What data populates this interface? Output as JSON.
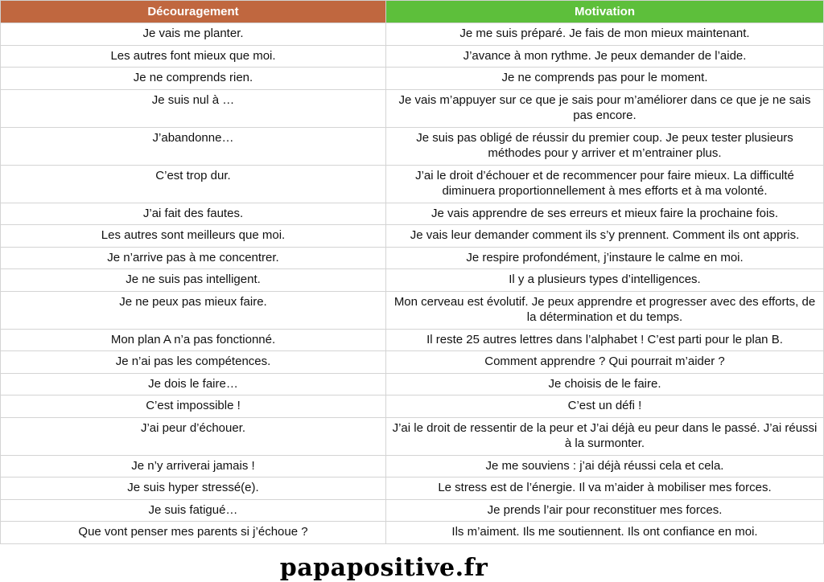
{
  "header": {
    "left": "Découragement",
    "right": "Motivation",
    "colors": {
      "left": "#c0673f",
      "right": "#5dbf3b"
    }
  },
  "rows": [
    {
      "d": "Je vais me planter.",
      "m": "Je me suis préparé. Je fais de mon mieux maintenant."
    },
    {
      "d": "Les autres font mieux que moi.",
      "m": "J’avance à mon rythme. Je peux demander de l’aide."
    },
    {
      "d": "Je ne comprends rien.",
      "m": "Je ne comprends pas pour le moment."
    },
    {
      "d": "Je suis nul à …",
      "m": "Je vais m’appuyer sur ce que je sais pour m’améliorer dans ce que je ne sais pas encore."
    },
    {
      "d": "J’abandonne…",
      "m": "Je suis pas obligé de réussir du premier coup. Je peux tester plusieurs méthodes pour y arriver et m’entrainer plus."
    },
    {
      "d": "C’est trop dur.",
      "m": "J’ai le droit d’échouer et de recommencer pour faire mieux. La difficulté diminuera proportionnellement à mes efforts et à ma volonté."
    },
    {
      "d": "J’ai fait des fautes.",
      "m": "Je vais apprendre de ses erreurs et mieux faire la prochaine fois."
    },
    {
      "d": "Les autres sont meilleurs que moi.",
      "m": "Je vais leur demander comment ils s’y prennent. Comment ils ont appris."
    },
    {
      "d": "Je n’arrive pas à me concentrer.",
      "m": "Je respire profondément, j’instaure le calme en moi."
    },
    {
      "d": "Je ne suis pas intelligent.",
      "m": "Il y a plusieurs types d’intelligences."
    },
    {
      "d": "Je ne peux pas mieux faire.",
      "m": "Mon cerveau est évolutif. Je peux apprendre et progresser avec des efforts, de la détermination et du temps."
    },
    {
      "d": "Mon plan A n’a pas fonctionné.",
      "m": "Il reste 25 autres lettres dans l’alphabet ! C’est parti pour le plan B."
    },
    {
      "d": "Je n’ai pas les compétences.",
      "m": "Comment apprendre ? Qui pourrait m’aider ?"
    },
    {
      "d": "Je dois le faire…",
      "m": "Je choisis de le faire."
    },
    {
      "d": "C’est impossible !",
      "m": "C’est un défi !"
    },
    {
      "d": "J’ai peur d’échouer.",
      "m": "J’ai le droit de ressentir de la peur et J’ai déjà eu peur dans le passé. J’ai réussi à la surmonter."
    },
    {
      "d": "Je n’y arriverai jamais !",
      "m": "Je me souviens : j’ai déjà réussi cela et cela."
    },
    {
      "d": "Je suis hyper stressé(e).",
      "m": "Le stress est de l’énergie. Il va m’aider à mobiliser mes forces."
    },
    {
      "d": "Je suis fatigué…",
      "m": "Je prends l’air pour reconstituer mes forces."
    },
    {
      "d": "Que vont penser mes parents si j’échoue ?",
      "m": "Ils m’aiment. Ils me soutiennent. Ils ont confiance en moi."
    }
  ],
  "footer": {
    "brand": "papapositive.fr"
  }
}
